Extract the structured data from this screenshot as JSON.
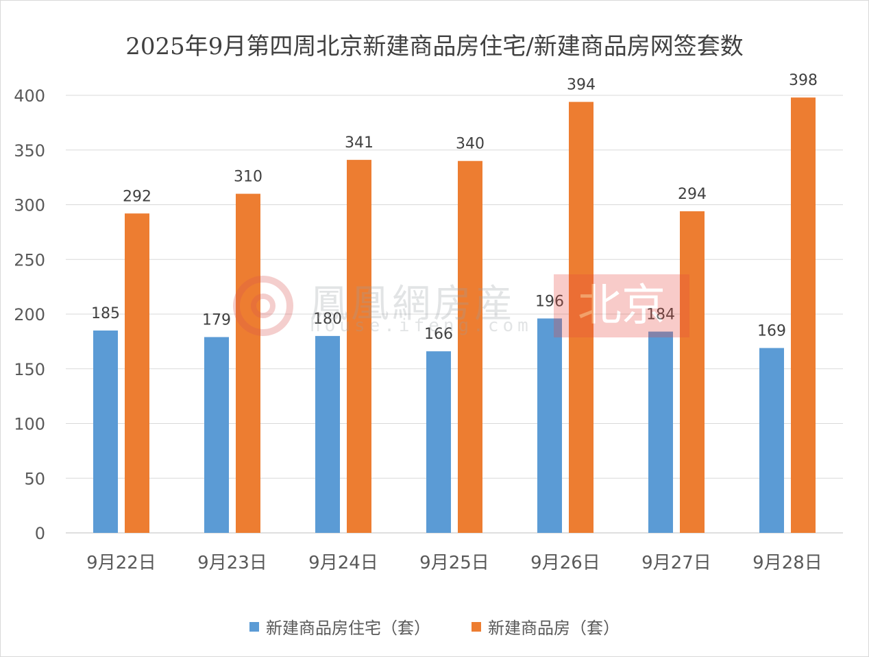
{
  "chart_data": {
    "type": "bar",
    "title": "2025年9月第四周北京新建商品房住宅/新建商品房网签套数",
    "categories": [
      "9月22日",
      "9月23日",
      "9月24日",
      "9月25日",
      "9月26日",
      "9月27日",
      "9月28日"
    ],
    "series": [
      {
        "name": "新建商品房住宅（套）",
        "color": "#5b9bd5",
        "values": [
          185,
          179,
          180,
          166,
          196,
          184,
          169
        ]
      },
      {
        "name": "新建商品房（套）",
        "color": "#ed7d31",
        "values": [
          292,
          310,
          341,
          340,
          394,
          294,
          398
        ]
      }
    ],
    "ylim": [
      0,
      400
    ],
    "yticks": [
      0,
      50,
      100,
      150,
      200,
      250,
      300,
      350,
      400
    ],
    "grid": true,
    "legend": "bottom"
  },
  "watermark": {
    "name": "鳳凰網房産",
    "url": "house.ifeng.com",
    "city": "北京"
  }
}
